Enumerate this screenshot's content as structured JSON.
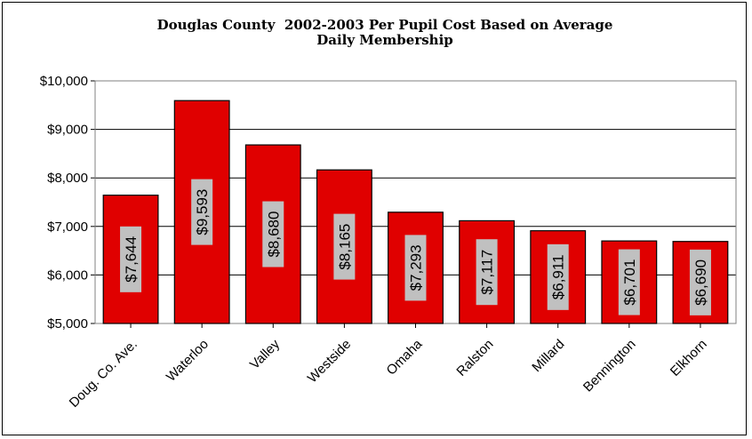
{
  "chart_data": {
    "type": "bar",
    "title": "Douglas County  2002-2003 Per Pupil Cost Based on Average Daily Membership",
    "title_lines": [
      "Douglas County  2002-2003 Per Pupil Cost Based on Average",
      "Daily Membership"
    ],
    "categories": [
      "Doug. Co. Ave.",
      "Waterloo",
      "Valley",
      "Westside",
      "Omaha",
      "Ralston",
      "Millard",
      "Bennington",
      "Elkhorn"
    ],
    "values": [
      7644,
      9593,
      8680,
      8165,
      7293,
      7117,
      6911,
      6701,
      6690
    ],
    "data_labels": [
      "$7,644",
      "$9,593",
      "$8,680",
      "$8,165",
      "$7,293",
      "$7,117",
      "$6,911",
      "$6,701",
      "$6,690"
    ],
    "ylim": [
      5000,
      10000
    ],
    "yticks": [
      5000,
      6000,
      7000,
      8000,
      9000,
      10000
    ],
    "ytick_labels": [
      "$5,000",
      "$6,000",
      "$7,000",
      "$8,000",
      "$9,000",
      "$10,000"
    ],
    "xlabel": "",
    "ylabel": "",
    "grid": true,
    "legend": false,
    "bar_color": "#e00000",
    "label_box_color": "#c0c0c0"
  }
}
